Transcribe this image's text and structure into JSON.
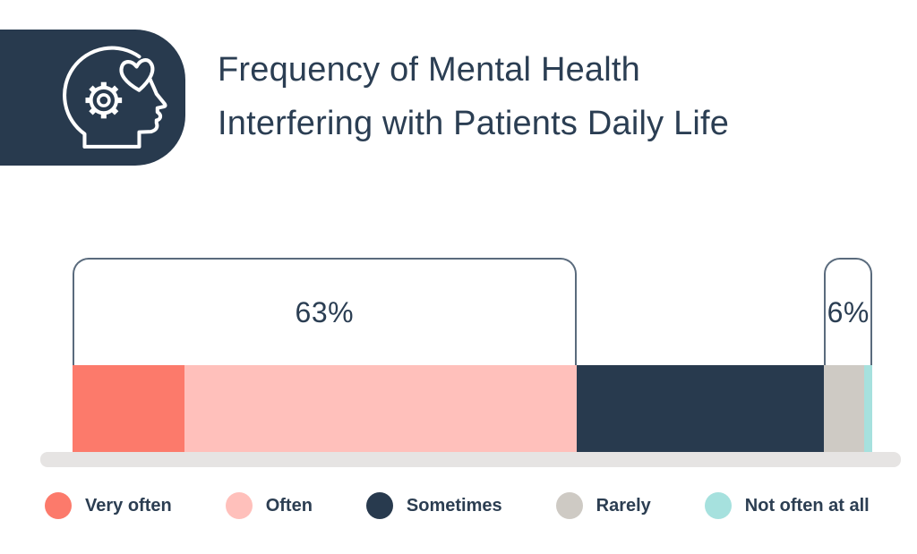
{
  "header": {
    "title_line1": "Frequency of Mental Health",
    "title_line2": "Interfering with Patients Daily Life",
    "icon": "head-with-gear-and-heart-icon"
  },
  "colors": {
    "navy": "#283A4E",
    "title_text": "#2B3E53",
    "bracket_stroke": "#5A6B7D",
    "baseline_gray": "#E6E4E3"
  },
  "chart_data": {
    "type": "bar",
    "variant": "horizontal-stacked-percentage",
    "title": "Frequency of Mental Health Interfering with Patients Daily Life",
    "categories": [
      "Very often",
      "Often",
      "Sometimes",
      "Rarely",
      "Not often at all"
    ],
    "values": [
      14,
      49,
      31,
      5,
      1
    ],
    "unit": "%",
    "segment_colors": [
      "#FC7A6B",
      "#FFC0BB",
      "#283A4E",
      "#CECAC4",
      "#A6E1DE"
    ],
    "xlim": [
      0,
      100
    ],
    "grid": false,
    "legend_position": "bottom",
    "annotations": [
      {
        "label": "63%",
        "covers": [
          "Very often",
          "Often"
        ],
        "from_index": 0,
        "to_index": 1
      },
      {
        "label": "6%",
        "covers": [
          "Rarely",
          "Not often at all"
        ],
        "from_index": 3,
        "to_index": 4
      }
    ]
  }
}
